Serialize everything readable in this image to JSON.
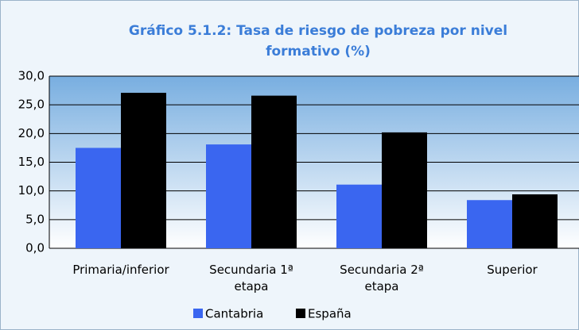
{
  "chart_data": {
    "type": "bar",
    "title": "Gráfico 5.1.2: Tasa de riesgo de pobreza por nivel formativo (%)",
    "categories": [
      "Primaria/inferior",
      "Secundaria 1ª etapa",
      "Secundaria 2ª etapa",
      "Superior"
    ],
    "series": [
      {
        "name": "Cantabria",
        "color": "#3a66f0",
        "values": [
          17.5,
          18.1,
          11.1,
          8.4
        ]
      },
      {
        "name": "España",
        "color": "#000000",
        "values": [
          27.1,
          26.6,
          20.2,
          9.4
        ]
      }
    ],
    "ylim": [
      0,
      30
    ],
    "yticks": [
      {
        "value": 0,
        "label": "0,0"
      },
      {
        "value": 5,
        "label": "5,0"
      },
      {
        "value": 10,
        "label": "10,0"
      },
      {
        "value": 15,
        "label": "15,0"
      },
      {
        "value": 20,
        "label": "20,0"
      },
      {
        "value": 25,
        "label": "25,0"
      },
      {
        "value": 30,
        "label": "30,0"
      }
    ],
    "grid": true,
    "legend": "bottom"
  }
}
